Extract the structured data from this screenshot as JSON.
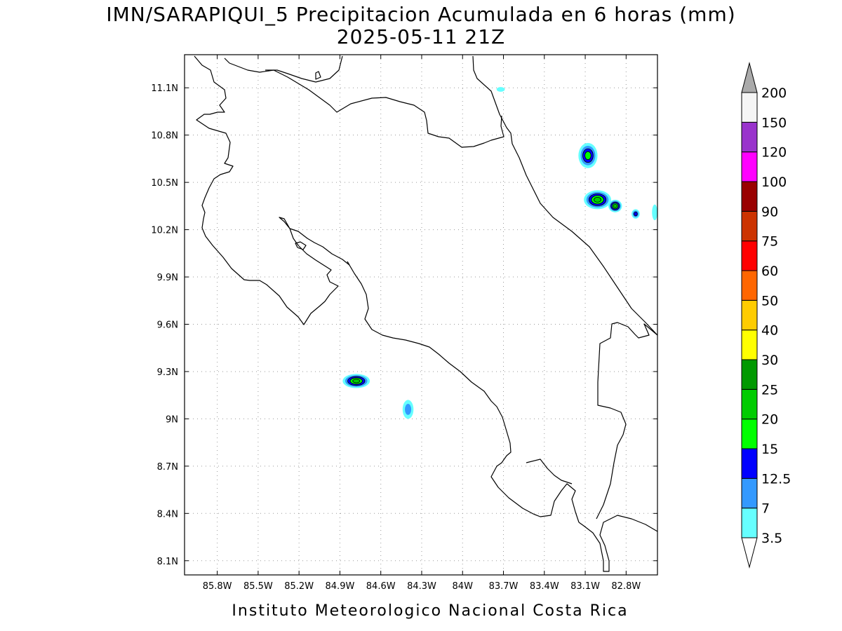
{
  "title": {
    "line1": "IMN/SARAPIQUI_5 Precipitacion Acumulada en 6 horas (mm)",
    "line2": "2025-05-11 21Z"
  },
  "credit": "Instituto Meteorologico Nacional Costa Rica",
  "map": {
    "lon_range": [
      -86.04,
      -82.57
    ],
    "lat_range": [
      8.01,
      11.31
    ],
    "x_ticks": [
      {
        "value": -85.8,
        "label": "85.8W"
      },
      {
        "value": -85.5,
        "label": "85.5W"
      },
      {
        "value": -85.2,
        "label": "85.2W"
      },
      {
        "value": -84.9,
        "label": "84.9W"
      },
      {
        "value": -84.6,
        "label": "84.6W"
      },
      {
        "value": -84.3,
        "label": "84.3W"
      },
      {
        "value": -84.0,
        "label": "84W"
      },
      {
        "value": -83.7,
        "label": "83.7W"
      },
      {
        "value": -83.4,
        "label": "83.4W"
      },
      {
        "value": -83.1,
        "label": "83.1W"
      },
      {
        "value": -82.8,
        "label": "82.8W"
      }
    ],
    "y_ticks": [
      {
        "value": 8.1,
        "label": "8.1N"
      },
      {
        "value": 8.4,
        "label": "8.4N"
      },
      {
        "value": 8.7,
        "label": "8.7N"
      },
      {
        "value": 9.0,
        "label": "9N"
      },
      {
        "value": 9.3,
        "label": "9.3N"
      },
      {
        "value": 9.6,
        "label": "9.6N"
      },
      {
        "value": 9.9,
        "label": "9.9N"
      },
      {
        "value": 10.2,
        "label": "10.2N"
      },
      {
        "value": 10.5,
        "label": "10.5N"
      },
      {
        "value": 10.8,
        "label": "10.8N"
      },
      {
        "value": 11.1,
        "label": "11.1N"
      }
    ],
    "grid": true
  },
  "colorbar": {
    "levels": [
      {
        "label": "3.5",
        "color": "#66ffff"
      },
      {
        "label": "7",
        "color": "#3399ff"
      },
      {
        "label": "12.5",
        "color": "#0000ff"
      },
      {
        "label": "15",
        "color": "#00ff00"
      },
      {
        "label": "20",
        "color": "#00cc00"
      },
      {
        "label": "25",
        "color": "#009900"
      },
      {
        "label": "30",
        "color": "#ffff00"
      },
      {
        "label": "40",
        "color": "#ffcc00"
      },
      {
        "label": "50",
        "color": "#ff6600"
      },
      {
        "label": "60",
        "color": "#ff0000"
      },
      {
        "label": "75",
        "color": "#cc3300"
      },
      {
        "label": "90",
        "color": "#990000"
      },
      {
        "label": "100",
        "color": "#ff00ff"
      },
      {
        "label": "120",
        "color": "#9933cc"
      },
      {
        "label": "150",
        "color": "#f5f5f5"
      },
      {
        "label": "200",
        "color": null
      }
    ],
    "below_color": "#ffffff",
    "above_color": "#aaaaaa"
  },
  "precip_cells": [
    {
      "lon": -83.08,
      "lat": 10.67,
      "rx": 0.07,
      "ry": 0.08,
      "level": 3
    },
    {
      "lon": -83.01,
      "lat": 10.39,
      "rx": 0.1,
      "ry": 0.06,
      "level": 4
    },
    {
      "lon": -82.88,
      "lat": 10.35,
      "rx": 0.05,
      "ry": 0.04,
      "level": 4
    },
    {
      "lon": -82.73,
      "lat": 10.3,
      "rx": 0.03,
      "ry": 0.03,
      "level": 2
    },
    {
      "lon": -84.78,
      "lat": 9.24,
      "rx": 0.1,
      "ry": 0.045,
      "level": 4
    },
    {
      "lon": -84.4,
      "lat": 9.06,
      "rx": 0.04,
      "ry": 0.06,
      "level": 1
    },
    {
      "lon": -83.72,
      "lat": 11.09,
      "rx": 0.03,
      "ry": 0.015,
      "level": 0
    },
    {
      "lon": -82.59,
      "lat": 10.31,
      "rx": 0.02,
      "ry": 0.05,
      "level": 0
    }
  ]
}
